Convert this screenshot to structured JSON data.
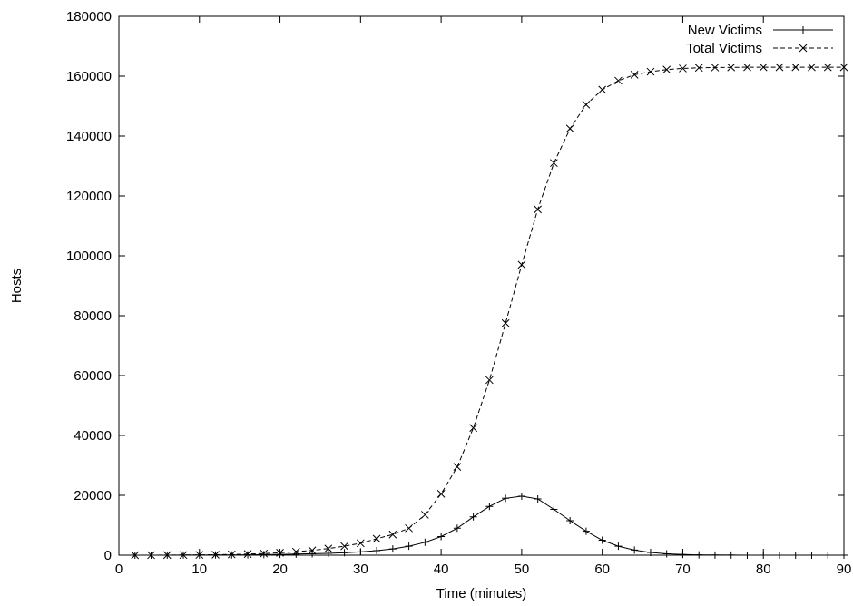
{
  "chart_data": {
    "type": "line",
    "title": "",
    "xlabel": "Time (minutes)",
    "ylabel": "Hosts",
    "xlim": [
      0,
      90
    ],
    "ylim": [
      0,
      180000
    ],
    "xticks": [
      0,
      10,
      20,
      30,
      40,
      50,
      60,
      70,
      80,
      90
    ],
    "yticks": [
      0,
      20000,
      40000,
      60000,
      80000,
      100000,
      120000,
      140000,
      160000,
      180000
    ],
    "grid": false,
    "legend_position": "top-right",
    "x": [
      2,
      4,
      6,
      8,
      10,
      12,
      14,
      16,
      18,
      20,
      22,
      24,
      26,
      28,
      30,
      32,
      34,
      36,
      38,
      40,
      42,
      44,
      46,
      48,
      50,
      52,
      54,
      56,
      58,
      60,
      62,
      64,
      66,
      68,
      70,
      72,
      74,
      76,
      78,
      80,
      82,
      84,
      86,
      88,
      90
    ],
    "series": [
      {
        "name": "New Victims",
        "marker": "+",
        "line_style": "solid",
        "color": "#000000",
        "values": [
          5,
          10,
          15,
          25,
          40,
          60,
          90,
          130,
          180,
          250,
          350,
          470,
          620,
          820,
          1100,
          1500,
          2100,
          3000,
          4300,
          6200,
          9000,
          12800,
          16300,
          19000,
          19700,
          18800,
          15300,
          11500,
          8000,
          5000,
          3000,
          1700,
          900,
          450,
          220,
          100,
          50,
          20,
          10,
          5,
          3,
          1,
          0,
          0,
          0
        ]
      },
      {
        "name": "Total Victims",
        "marker": "x",
        "line_style": "dashed",
        "color": "#000000",
        "values": [
          5,
          15,
          30,
          55,
          95,
          155,
          245,
          375,
          555,
          800,
          1150,
          1600,
          2200,
          3000,
          4000,
          5500,
          6900,
          9000,
          13500,
          20500,
          29500,
          42500,
          58500,
          77500,
          97000,
          115500,
          131000,
          142500,
          150500,
          155500,
          158500,
          160500,
          161500,
          162200,
          162600,
          162800,
          162900,
          162950,
          163000,
          163000,
          163000,
          163000,
          163000,
          163000,
          163000
        ]
      }
    ]
  }
}
